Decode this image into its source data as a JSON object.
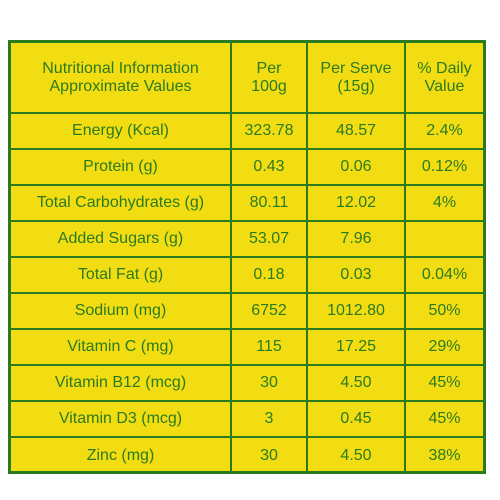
{
  "table": {
    "header": {
      "title_line1": "Nutritional Information",
      "title_line2": "Approximate Values",
      "per100_line1": "Per",
      "per100_line2": "100g",
      "serve_line1": "Per Serve",
      "serve_line2": "(15g)",
      "daily_line1": "% Daily",
      "daily_line2": "Value"
    },
    "rows": [
      {
        "name": "Energy (Kcal)",
        "per100": "323.78",
        "serve": "48.57",
        "daily": "2.4%"
      },
      {
        "name": "Protein (g)",
        "per100": "0.43",
        "serve": "0.06",
        "daily": "0.12%"
      },
      {
        "name": "Total Carbohydrates (g)",
        "per100": "80.11",
        "serve": "12.02",
        "daily": "4%"
      },
      {
        "name": "Added Sugars (g)",
        "per100": "53.07",
        "serve": "7.96",
        "daily": ""
      },
      {
        "name": "Total Fat (g)",
        "per100": "0.18",
        "serve": "0.03",
        "daily": "0.04%"
      },
      {
        "name": "Sodium (mg)",
        "per100": "6752",
        "serve": "1012.80",
        "daily": "50%"
      },
      {
        "name": "Vitamin C (mg)",
        "per100": "115",
        "serve": "17.25",
        "daily": "29%"
      },
      {
        "name": "Vitamin B12 (mcg)",
        "per100": "30",
        "serve": "4.50",
        "daily": "45%"
      },
      {
        "name": "Vitamin D3 (mcg)",
        "per100": "3",
        "serve": "0.45",
        "daily": "45%"
      },
      {
        "name": "Zinc (mg)",
        "per100": "30",
        "serve": "4.50",
        "daily": "38%"
      }
    ]
  },
  "colors": {
    "background": "#f1dd12",
    "text_and_lines": "#2c7a1f"
  }
}
